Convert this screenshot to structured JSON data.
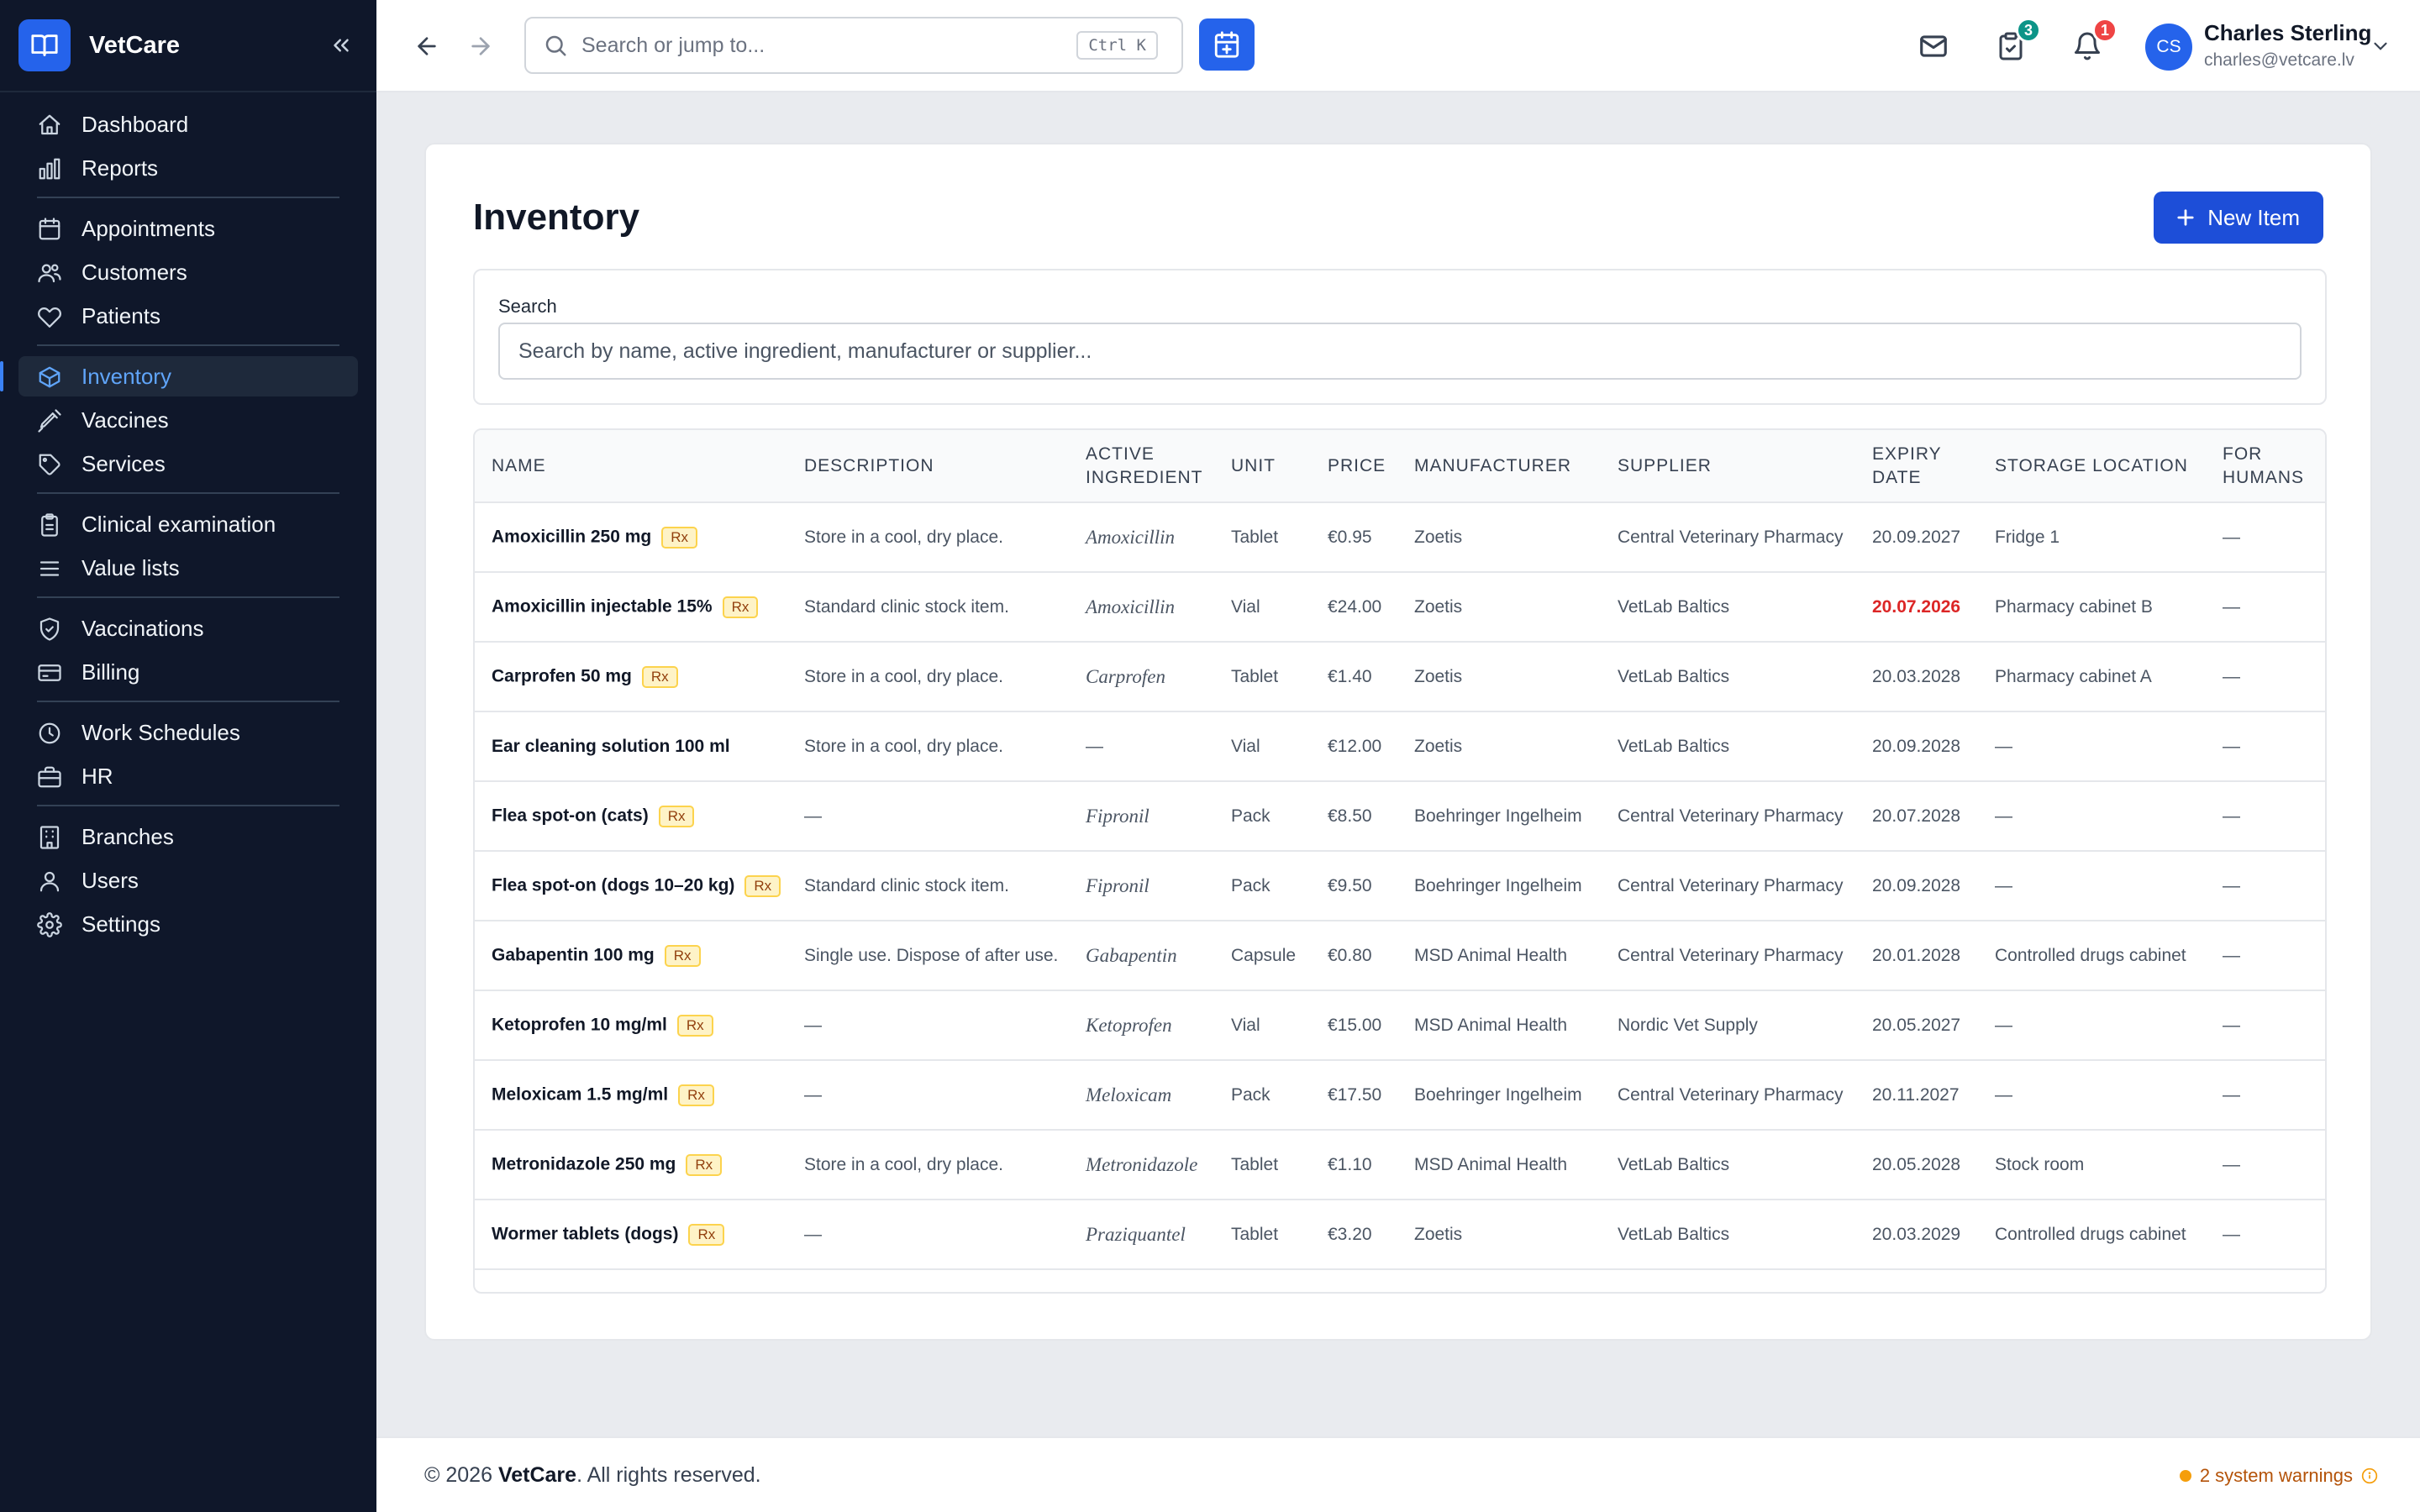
{
  "app": {
    "name": "VetCare"
  },
  "sidebar": {
    "items": [
      {
        "label": "Dashboard",
        "icon": "home-icon"
      },
      {
        "label": "Reports",
        "icon": "bar-chart-icon"
      },
      {
        "label": "Appointments",
        "icon": "calendar-icon"
      },
      {
        "label": "Customers",
        "icon": "users-icon"
      },
      {
        "label": "Patients",
        "icon": "heart-icon"
      },
      {
        "label": "Inventory",
        "icon": "box-icon",
        "active": true
      },
      {
        "label": "Vaccines",
        "icon": "syringe-icon"
      },
      {
        "label": "Services",
        "icon": "tag-icon"
      },
      {
        "label": "Clinical examination",
        "icon": "clipboard-icon"
      },
      {
        "label": "Value lists",
        "icon": "list-icon"
      },
      {
        "label": "Vaccinations",
        "icon": "shield-check-icon"
      },
      {
        "label": "Billing",
        "icon": "credit-card-icon"
      },
      {
        "label": "Work Schedules",
        "icon": "clock-icon"
      },
      {
        "label": "HR",
        "icon": "briefcase-icon"
      },
      {
        "label": "Branches",
        "icon": "building-icon"
      },
      {
        "label": "Users",
        "icon": "user-icon"
      },
      {
        "label": "Settings",
        "icon": "gear-icon"
      }
    ]
  },
  "topbar": {
    "search_placeholder": "Search or jump to...",
    "shortcut": "Ctrl K",
    "tasks_badge": "3",
    "notifications_badge": "1",
    "user": {
      "initials": "CS",
      "name": "Charles Sterling",
      "email": "charles@vetcare.lv"
    }
  },
  "page": {
    "title": "Inventory",
    "new_button": "New Item",
    "search_label": "Search",
    "search_placeholder": "Search by name, active ingredient, manufacturer or supplier..."
  },
  "table": {
    "columns": [
      "NAME",
      "DESCRIPTION",
      "ACTIVE INGREDIENT",
      "UNIT",
      "PRICE",
      "MANUFACTURER",
      "SUPPLIER",
      "EXPIRY DATE",
      "STORAGE LOCATION",
      "FOR HUMANS"
    ],
    "rows": [
      {
        "name": "Amoxicillin 250 mg",
        "rx": "Rx",
        "description": "Store in a cool, dry place.",
        "ingredient": "Amoxicillin",
        "unit": "Tablet",
        "price": "€0.95",
        "manufacturer": "Zoetis",
        "supplier": "Central Veterinary Pharmacy",
        "expiry": "20.09.2027",
        "expired": false,
        "storage": "Fridge 1",
        "humans": "—"
      },
      {
        "name": "Amoxicillin injectable 15%",
        "rx": "Rx",
        "description": "Standard clinic stock item.",
        "ingredient": "Amoxicillin",
        "unit": "Vial",
        "price": "€24.00",
        "manufacturer": "Zoetis",
        "supplier": "VetLab Baltics",
        "expiry": "20.07.2026",
        "expired": true,
        "storage": "Pharmacy cabinet B",
        "humans": "—"
      },
      {
        "name": "Carprofen 50 mg",
        "rx": "Rx",
        "description": "Store in a cool, dry place.",
        "ingredient": "Carprofen",
        "unit": "Tablet",
        "price": "€1.40",
        "manufacturer": "Zoetis",
        "supplier": "VetLab Baltics",
        "expiry": "20.03.2028",
        "expired": false,
        "storage": "Pharmacy cabinet A",
        "humans": "—"
      },
      {
        "name": "Ear cleaning solution 100 ml",
        "rx": "",
        "description": "Store in a cool, dry place.",
        "ingredient": "—",
        "unit": "Vial",
        "price": "€12.00",
        "manufacturer": "Zoetis",
        "supplier": "VetLab Baltics",
        "expiry": "20.09.2028",
        "expired": false,
        "storage": "—",
        "humans": "—"
      },
      {
        "name": "Flea spot-on (cats)",
        "rx": "Rx",
        "description": "—",
        "ingredient": "Fipronil",
        "unit": "Pack",
        "price": "€8.50",
        "manufacturer": "Boehringer Ingelheim",
        "supplier": "Central Veterinary Pharmacy",
        "expiry": "20.07.2028",
        "expired": false,
        "storage": "—",
        "humans": "—"
      },
      {
        "name": "Flea spot-on (dogs 10–20 kg)",
        "rx": "Rx",
        "description": "Standard clinic stock item.",
        "ingredient": "Fipronil",
        "unit": "Pack",
        "price": "€9.50",
        "manufacturer": "Boehringer Ingelheim",
        "supplier": "Central Veterinary Pharmacy",
        "expiry": "20.09.2028",
        "expired": false,
        "storage": "—",
        "humans": "—"
      },
      {
        "name": "Gabapentin 100 mg",
        "rx": "Rx",
        "description": "Single use. Dispose of after use.",
        "ingredient": "Gabapentin",
        "unit": "Capsule",
        "price": "€0.80",
        "manufacturer": "MSD Animal Health",
        "supplier": "Central Veterinary Pharmacy",
        "expiry": "20.01.2028",
        "expired": false,
        "storage": "Controlled drugs cabinet",
        "humans": "—"
      },
      {
        "name": "Ketoprofen 10 mg/ml",
        "rx": "Rx",
        "description": "—",
        "ingredient": "Ketoprofen",
        "unit": "Vial",
        "price": "€15.00",
        "manufacturer": "MSD Animal Health",
        "supplier": "Nordic Vet Supply",
        "expiry": "20.05.2027",
        "expired": false,
        "storage": "—",
        "humans": "—"
      },
      {
        "name": "Meloxicam 1.5 mg/ml",
        "rx": "Rx",
        "description": "—",
        "ingredient": "Meloxicam",
        "unit": "Pack",
        "price": "€17.50",
        "manufacturer": "Boehringer Ingelheim",
        "supplier": "Central Veterinary Pharmacy",
        "expiry": "20.11.2027",
        "expired": false,
        "storage": "—",
        "humans": "—"
      },
      {
        "name": "Metronidazole 250 mg",
        "rx": "Rx",
        "description": "Store in a cool, dry place.",
        "ingredient": "Metronidazole",
        "unit": "Tablet",
        "price": "€1.10",
        "manufacturer": "MSD Animal Health",
        "supplier": "VetLab Baltics",
        "expiry": "20.05.2028",
        "expired": false,
        "storage": "Stock room",
        "humans": "—"
      },
      {
        "name": "Wormer tablets (dogs)",
        "rx": "Rx",
        "description": "—",
        "ingredient": "Praziquantel",
        "unit": "Tablet",
        "price": "€3.20",
        "manufacturer": "Zoetis",
        "supplier": "VetLab Baltics",
        "expiry": "20.03.2029",
        "expired": false,
        "storage": "Controlled drugs cabinet",
        "humans": "—"
      }
    ]
  },
  "footer": {
    "copyright_prefix": "© 2026 ",
    "brand": "VetCare",
    "copyright_suffix": ". All rights reserved.",
    "warnings": "2 system warnings"
  },
  "colors": {
    "sidebar_bg": "#0f172a",
    "accent": "#2563eb",
    "expired": "#dc2626",
    "tasks_badge": "#0d9488",
    "notification_badge": "#ef4444",
    "warning": "#f59e0b"
  }
}
